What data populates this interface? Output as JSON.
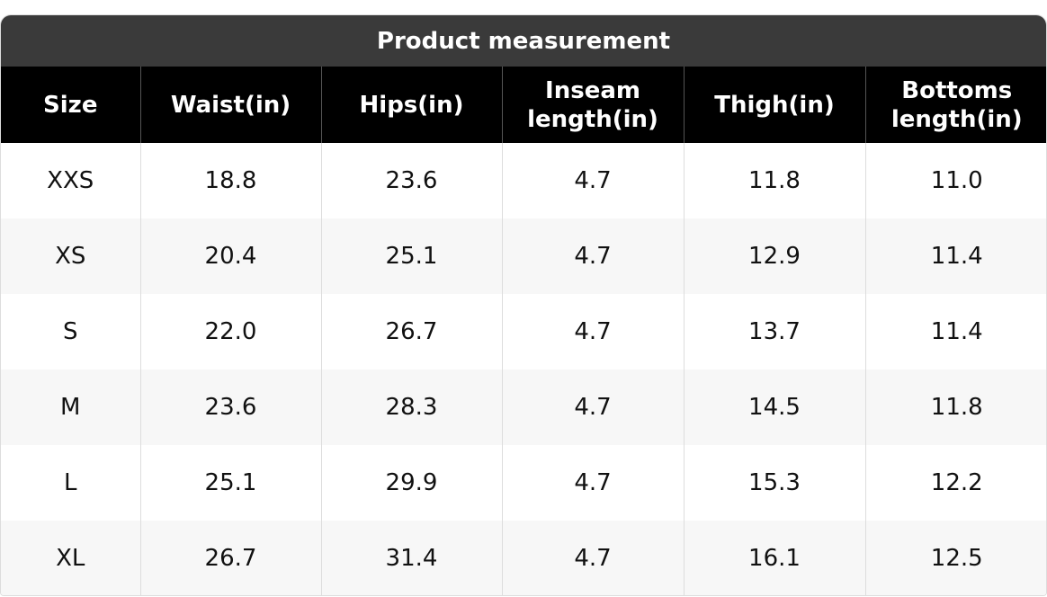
{
  "title": "Product measurement",
  "table": {
    "header": [
      "Size",
      "Waist(in)",
      "Hips(in)",
      "Inseam length(in)",
      "Thigh(in)",
      "Bottoms length(in)"
    ],
    "rows": [
      [
        "XXS",
        "18.8",
        "23.6",
        "4.7",
        "11.8",
        "11.0"
      ],
      [
        "XS",
        "20.4",
        "25.1",
        "4.7",
        "12.9",
        "11.4"
      ],
      [
        "S",
        "22.0",
        "26.7",
        "4.7",
        "13.7",
        "11.4"
      ],
      [
        "M",
        "23.6",
        "28.3",
        "4.7",
        "14.5",
        "11.8"
      ],
      [
        "L",
        "25.1",
        "29.9",
        "4.7",
        "15.3",
        "12.2"
      ],
      [
        "XL",
        "26.7",
        "31.4",
        "4.7",
        "16.1",
        "12.5"
      ]
    ]
  }
}
